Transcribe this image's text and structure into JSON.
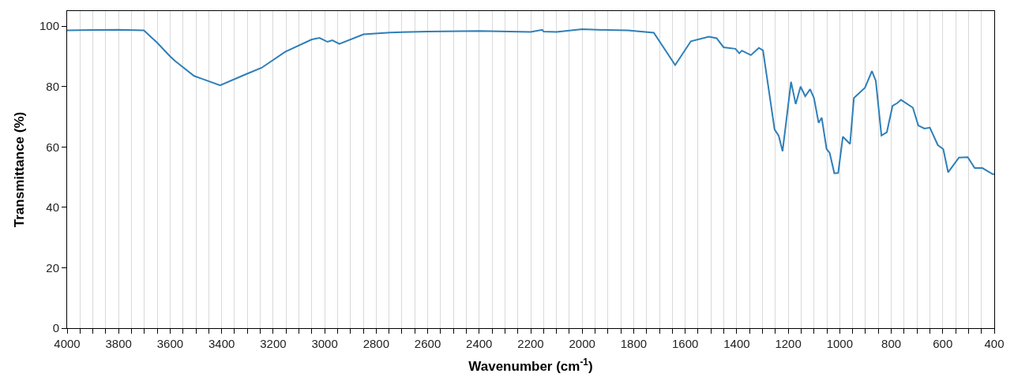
{
  "chart_data": {
    "type": "line",
    "xlabel": "Wavenumber (cm$^{-1}$)",
    "ylabel": "Transmittance (%)",
    "x": [
      4000,
      3900,
      3800,
      3702,
      3650,
      3600,
      3580,
      3507,
      3406,
      3305,
      3245,
      3153,
      3050,
      3020,
      2989,
      2970,
      2943,
      2849,
      2745,
      2600,
      2400,
      2200,
      2155,
      2150,
      2100,
      2000,
      1900,
      1822,
      1722,
      1639,
      1578,
      1508,
      1478,
      1451,
      1405,
      1390,
      1380,
      1345,
      1314,
      1298,
      1253,
      1237,
      1222,
      1189,
      1171,
      1152,
      1134,
      1115,
      1100,
      1082,
      1070,
      1051,
      1039,
      1021,
      1006,
      988,
      960,
      945,
      902,
      875,
      860,
      838,
      817,
      795,
      777,
      762,
      716,
      695,
      671,
      650,
      619,
      598,
      579,
      537,
      503,
      476,
      446,
      406,
      400
    ],
    "series": [
      {
        "color": "#2e7fb8",
        "values": [
          98.6,
          98.7,
          98.8,
          98.6,
          94.5,
          90.0,
          88.4,
          83.5,
          80.4,
          84.1,
          86.2,
          91.5,
          95.6,
          96.1,
          94.8,
          95.3,
          94.1,
          97.3,
          97.9,
          98.2,
          98.4,
          98.1,
          98.8,
          98.2,
          98.1,
          99.0,
          98.7,
          98.6,
          97.8,
          87.1,
          95.0,
          96.5,
          96.0,
          93.0,
          92.5,
          91.0,
          91.9,
          90.4,
          92.8,
          92.0,
          65.8,
          63.7,
          58.6,
          81.6,
          74.2,
          80.0,
          76.8,
          79.1,
          76.2,
          68.0,
          69.7,
          59.3,
          58.0,
          51.3,
          51.4,
          63.4,
          61.0,
          76.2,
          79.6,
          85.1,
          81.9,
          63.8,
          64.9,
          73.6,
          74.5,
          75.6,
          73.0,
          67.1,
          66.1,
          66.4,
          60.6,
          59.3,
          51.6,
          56.5,
          56.6,
          53.0,
          53.0,
          51.0,
          51.0
        ]
      }
    ],
    "xlim": [
      4000,
      400
    ],
    "xticks": [
      4000,
      {
        "value": 3950,
        "label": null
      },
      3800,
      {
        "value": 3900,
        "label": null
      },
      {
        "value": 3850,
        "label": null
      },
      {
        "value": 3750,
        "label": null
      },
      {
        "value": 3700,
        "label": null
      },
      {
        "value": 3650,
        "label": null
      },
      3600,
      {
        "value": 3550,
        "label": null
      },
      {
        "value": 3500,
        "label": null
      },
      {
        "value": 3450,
        "label": null
      },
      3400,
      {
        "value": 3350,
        "label": null
      },
      {
        "value": 3300,
        "label": null
      },
      {
        "value": 3250,
        "label": null
      },
      3200,
      {
        "value": 3150,
        "label": null
      },
      {
        "value": 3100,
        "label": null
      },
      {
        "value": 3050,
        "label": null
      },
      3000,
      {
        "value": 2950,
        "label": null
      },
      {
        "value": 2900,
        "label": null
      },
      {
        "value": 2850,
        "label": null
      },
      2800,
      {
        "value": 2750,
        "label": null
      },
      {
        "value": 2700,
        "label": null
      },
      {
        "value": 2650,
        "label": null
      },
      2600,
      {
        "value": 2550,
        "label": null
      },
      {
        "value": 2500,
        "label": null
      },
      {
        "value": 2450,
        "label": null
      },
      2400,
      {
        "value": 2350,
        "label": null
      },
      {
        "value": 2300,
        "label": null
      },
      {
        "value": 2250,
        "label": null
      },
      2200,
      {
        "value": 2150,
        "label": null
      },
      {
        "value": 2100,
        "label": null
      },
      {
        "value": 2050,
        "label": null
      },
      2000,
      {
        "value": 1950,
        "label": null
      },
      {
        "value": 1900,
        "label": null
      },
      {
        "value": 1850,
        "label": null
      },
      1800,
      {
        "value": 1750,
        "label": null
      },
      {
        "value": 1700,
        "label": null
      },
      {
        "value": 1650,
        "label": null
      },
      1600,
      {
        "value": 1550,
        "label": null
      },
      {
        "value": 1500,
        "label": null
      },
      {
        "value": 1450,
        "label": null
      },
      1400,
      {
        "value": 1350,
        "label": null
      },
      {
        "value": 1300,
        "label": null
      },
      {
        "value": 1250,
        "label": null
      },
      1200,
      {
        "value": 1150,
        "label": null
      },
      {
        "value": 1100,
        "label": null
      },
      {
        "value": 1050,
        "label": null
      },
      1000,
      {
        "value": 950,
        "label": null
      },
      {
        "value": 900,
        "label": null
      },
      {
        "value": 850,
        "label": null
      },
      800,
      {
        "value": 750,
        "label": null
      },
      {
        "value": 700,
        "label": null
      },
      {
        "value": 650,
        "label": null
      },
      600,
      {
        "value": 550,
        "label": null
      },
      {
        "value": 500,
        "label": null
      },
      {
        "value": 450,
        "label": null
      },
      400
    ],
    "ylim": [
      0,
      105
    ],
    "yticks": [
      0,
      20,
      40,
      60,
      80,
      100
    ],
    "grid": "x",
    "marker": "none",
    "line_style": "solid"
  }
}
